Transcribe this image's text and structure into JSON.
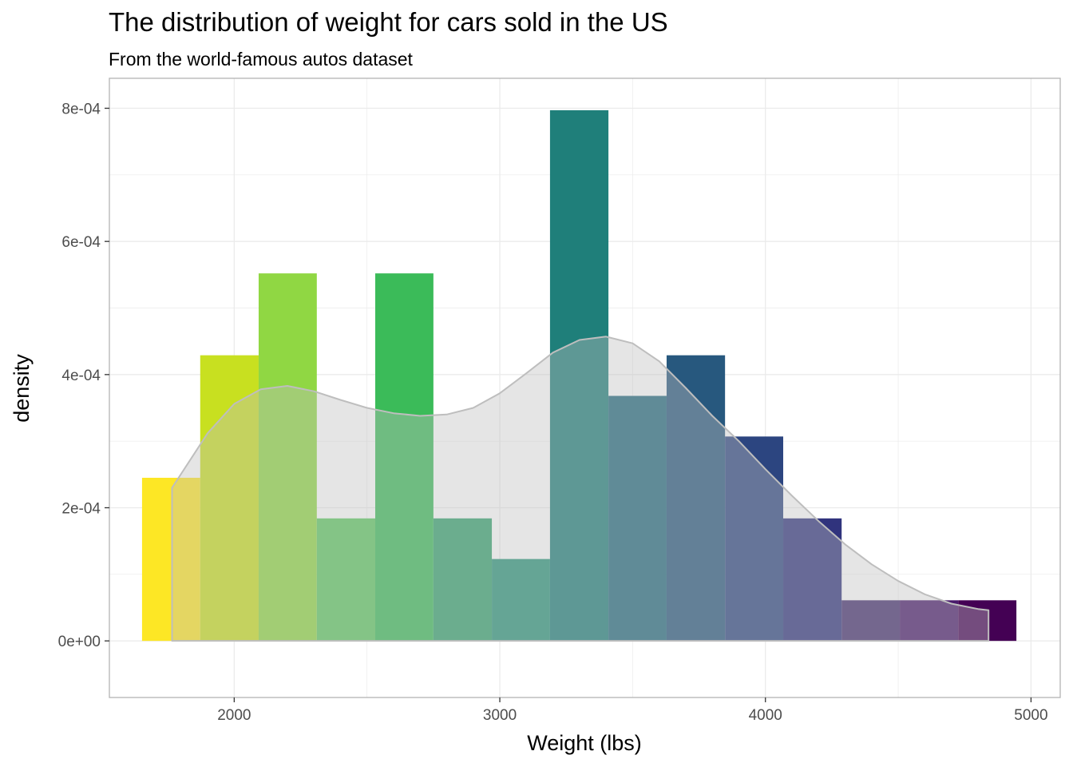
{
  "chart_data": {
    "type": "bar",
    "title": "The distribution of weight for cars sold in the US",
    "subtitle": "From the world-famous autos dataset",
    "xlabel": "Weight (lbs)",
    "ylabel": "density",
    "xlim": [
      1530,
      5110
    ],
    "ylim": [
      -8.5e-05,
      0.000845
    ],
    "x_ticks": [
      2000,
      3000,
      4000,
      5000
    ],
    "x_tick_labels": [
      "2000",
      "3000",
      "4000",
      "5000"
    ],
    "y_ticks": [
      0,
      0.0002,
      0.0004,
      0.0006,
      0.0008
    ],
    "y_tick_labels": [
      "0e+00",
      "2e-04",
      "4e-04",
      "6e-04",
      "8e-04"
    ],
    "grid": true,
    "histogram": {
      "bin_width": 219.5,
      "bins": [
        {
          "x_start": 1653,
          "x_end": 1872,
          "density": 0.000245,
          "color": "#FDE725"
        },
        {
          "x_start": 1872,
          "x_end": 2092,
          "density": 0.000429,
          "color": "#C8E020"
        },
        {
          "x_start": 2092,
          "x_end": 2311,
          "density": 0.000552,
          "color": "#90D743"
        },
        {
          "x_start": 2311,
          "x_end": 2531,
          "density": 0.000184,
          "color": "#5EC962"
        },
        {
          "x_start": 2531,
          "x_end": 2750,
          "density": 0.000552,
          "color": "#3BBB59"
        },
        {
          "x_start": 2750,
          "x_end": 2970,
          "density": 0.000184,
          "color": "#35A26F"
        },
        {
          "x_start": 2970,
          "x_end": 3189,
          "density": 0.000123,
          "color": "#2A947B"
        },
        {
          "x_start": 3189,
          "x_end": 3409,
          "density": 0.000797,
          "color": "#1F7F7A"
        },
        {
          "x_start": 3409,
          "x_end": 3628,
          "density": 0.000368,
          "color": "#22697E"
        },
        {
          "x_start": 3628,
          "x_end": 3848,
          "density": 0.000429,
          "color": "#27587E"
        },
        {
          "x_start": 3848,
          "x_end": 4067,
          "density": 0.000307,
          "color": "#2C4580"
        },
        {
          "x_start": 4067,
          "x_end": 4287,
          "density": 0.000184,
          "color": "#30337D"
        },
        {
          "x_start": 4287,
          "x_end": 4506,
          "density": 6.1e-05,
          "color": "#442D6E"
        },
        {
          "x_start": 4506,
          "x_end": 4726,
          "density": 6.1e-05,
          "color": "#48196B"
        },
        {
          "x_start": 4726,
          "x_end": 4945,
          "density": 6.1e-05,
          "color": "#440154"
        }
      ]
    },
    "density_curve": {
      "fill": "#BEBEBE",
      "fill_opacity": 0.4,
      "stroke": "#BEBEBE",
      "points": [
        [
          1766,
          0.00023
        ],
        [
          1900,
          0.000312
        ],
        [
          2000,
          0.000356
        ],
        [
          2100,
          0.000378
        ],
        [
          2200,
          0.000383
        ],
        [
          2300,
          0.000375
        ],
        [
          2400,
          0.000362
        ],
        [
          2500,
          0.00035
        ],
        [
          2600,
          0.000342
        ],
        [
          2700,
          0.000338
        ],
        [
          2800,
          0.00034
        ],
        [
          2900,
          0.00035
        ],
        [
          3000,
          0.000372
        ],
        [
          3100,
          0.000402
        ],
        [
          3200,
          0.000433
        ],
        [
          3300,
          0.000452
        ],
        [
          3400,
          0.000457
        ],
        [
          3500,
          0.000447
        ],
        [
          3600,
          0.00042
        ],
        [
          3700,
          0.00038
        ],
        [
          3800,
          0.000338
        ],
        [
          3900,
          0.0003
        ],
        [
          4000,
          0.000258
        ],
        [
          4100,
          0.000218
        ],
        [
          4200,
          0.00018
        ],
        [
          4300,
          0.000145
        ],
        [
          4400,
          0.000115
        ],
        [
          4500,
          9e-05
        ],
        [
          4600,
          7e-05
        ],
        [
          4700,
          5.6e-05
        ],
        [
          4800,
          4.8e-05
        ],
        [
          4840,
          4.6e-05
        ]
      ]
    }
  }
}
